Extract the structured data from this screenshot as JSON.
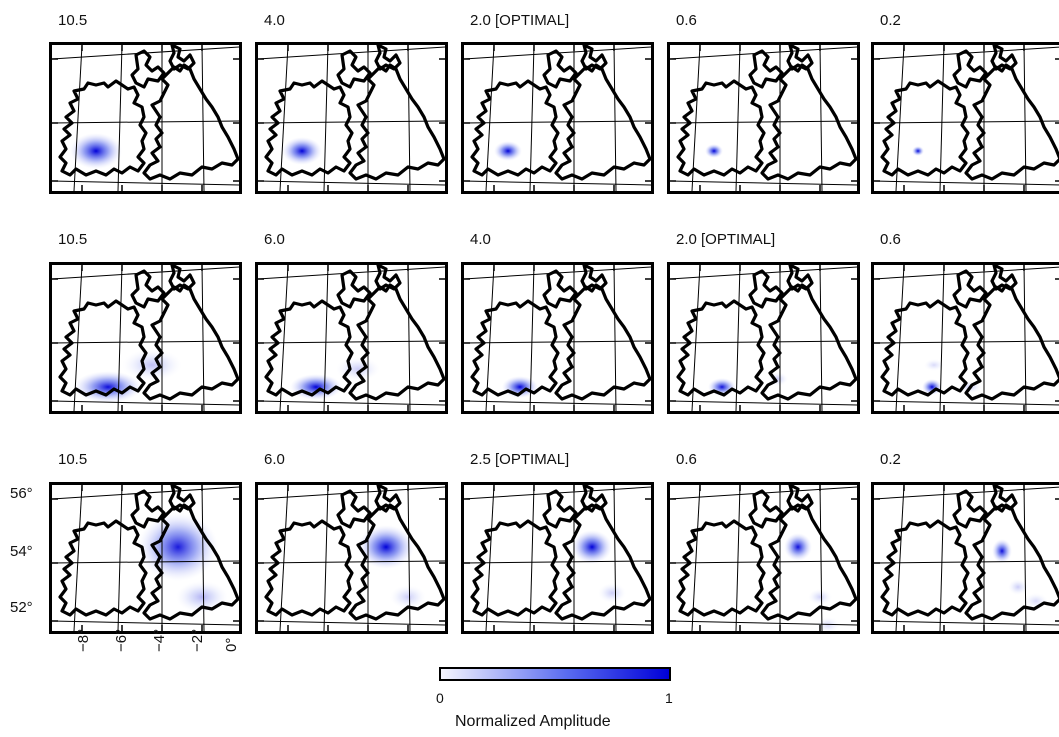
{
  "panel_labels": [
    [
      "10.5",
      "4.0",
      "2.0 [OPTIMAL]",
      "0.6",
      "0.2"
    ],
    [
      "10.5",
      "6.0",
      "4.0",
      "2.0 [OPTIMAL]",
      "0.6"
    ],
    [
      "10.5",
      "6.0",
      "2.5 [OPTIMAL]",
      "0.6",
      "0.2"
    ]
  ],
  "axes": {
    "y_ticks": [
      "56°",
      "54°",
      "52°"
    ],
    "x_ticks": [
      "−8°",
      "−6°",
      "−4°",
      "−2°",
      "0°"
    ]
  },
  "colorbar": {
    "min_label": "0",
    "max_label": "1",
    "title": "Normalized Amplitude",
    "color_low": "#f6f6fe",
    "color_high": "#0000d8"
  },
  "chart_data": {
    "type": "heatmap",
    "rows": 3,
    "cols": 5,
    "amplitude_range": [
      0,
      1
    ],
    "lat_range": [
      51,
      57
    ],
    "lon_range": [
      -10,
      1
    ],
    "color_high": "#0000d8"
  }
}
